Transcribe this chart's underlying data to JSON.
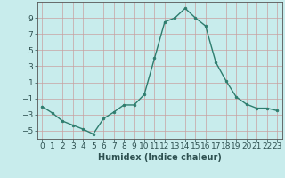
{
  "x": [
    0,
    1,
    2,
    3,
    4,
    5,
    6,
    7,
    8,
    9,
    10,
    11,
    12,
    13,
    14,
    15,
    16,
    17,
    18,
    19,
    20,
    21,
    22,
    23
  ],
  "y": [
    -2.0,
    -2.8,
    -3.8,
    -4.3,
    -4.8,
    -5.4,
    -3.5,
    -2.7,
    -1.8,
    -1.8,
    -0.5,
    4.0,
    8.5,
    9.0,
    10.2,
    9.0,
    8.0,
    3.5,
    1.2,
    -0.8,
    -1.7,
    -2.2,
    -2.2,
    -2.5
  ],
  "line_color": "#2e7d6e",
  "marker": "o",
  "marker_size": 2,
  "bg_color": "#c8ecec",
  "grid_color": "#b0c8c8",
  "xlabel": "Humidex (Indice chaleur)",
  "ylim": [
    -6,
    11
  ],
  "xlim": [
    -0.5,
    23.5
  ],
  "yticks": [
    -5,
    -3,
    -1,
    1,
    3,
    5,
    7,
    9
  ],
  "xticks": [
    0,
    1,
    2,
    3,
    4,
    5,
    6,
    7,
    8,
    9,
    10,
    11,
    12,
    13,
    14,
    15,
    16,
    17,
    18,
    19,
    20,
    21,
    22,
    23
  ],
  "label_fontsize": 7,
  "tick_fontsize": 6.5
}
